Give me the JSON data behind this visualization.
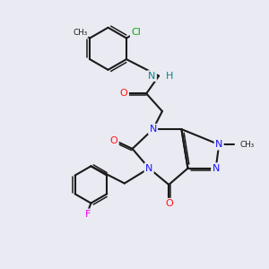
{
  "background_color": "#eaeaf2",
  "bond_color": "#1a1a1a",
  "N_color": "#1515ff",
  "O_color": "#ff1515",
  "F_color": "#ee00ee",
  "Cl_color": "#00aa00",
  "NH_color": "#008888",
  "figsize": [
    3.0,
    3.0
  ],
  "dpi": 100,
  "xlim": [
    0,
    10
  ],
  "ylim": [
    0,
    10
  ]
}
